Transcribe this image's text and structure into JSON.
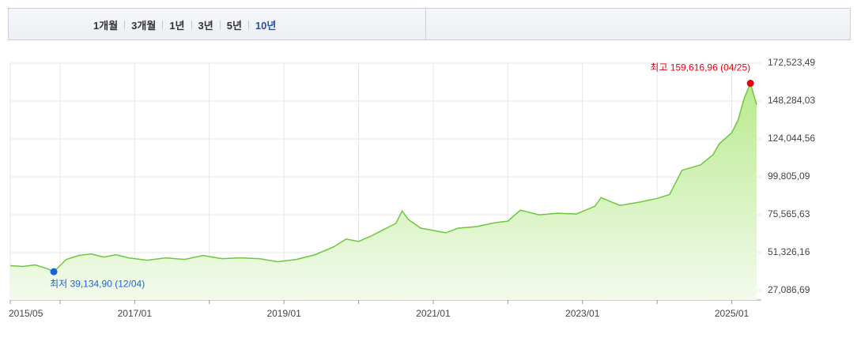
{
  "tabs": {
    "items": [
      "1개월",
      "3개월",
      "1년",
      "3년",
      "5년",
      "10년"
    ],
    "active": 5
  },
  "chart_data": {
    "type": "area-line",
    "x": [
      "2015/05",
      "2015/07",
      "2015/09",
      "2015/11",
      "2015/12",
      "2016/02",
      "2016/04",
      "2016/06",
      "2016/08",
      "2016/10",
      "2016/12",
      "2017/03",
      "2017/06",
      "2017/09",
      "2017/12",
      "2018/03",
      "2018/06",
      "2018/09",
      "2018/12",
      "2019/03",
      "2019/06",
      "2019/09",
      "2019/11",
      "2020/01",
      "2020/03",
      "2020/05",
      "2020/07",
      "2020/08",
      "2020/09",
      "2020/11",
      "2021/01",
      "2021/03",
      "2021/05",
      "2021/08",
      "2021/11",
      "2022/01",
      "2022/03",
      "2022/06",
      "2022/09",
      "2022/12",
      "2023/03",
      "2023/04",
      "2023/07",
      "2023/10",
      "2024/01",
      "2024/03",
      "2024/05",
      "2024/08",
      "2024/10",
      "2024/11",
      "2025/01",
      "2025/02",
      "2025/03",
      "2025/04",
      "2025/05"
    ],
    "values": [
      43000,
      42500,
      43500,
      41000,
      39135,
      47000,
      49500,
      50500,
      48500,
      50000,
      48000,
      46500,
      48000,
      47000,
      49500,
      47500,
      48000,
      47500,
      45500,
      47000,
      50000,
      55000,
      60000,
      58500,
      62000,
      66000,
      70000,
      78000,
      72500,
      67000,
      65500,
      64000,
      67000,
      68000,
      70500,
      71500,
      78500,
      75500,
      76500,
      76000,
      81000,
      86500,
      81500,
      83500,
      86000,
      88500,
      104000,
      107500,
      114000,
      121000,
      128000,
      136000,
      150000,
      159617,
      146000
    ],
    "color": "#6cc83a",
    "xlim": [
      "2015/05",
      "2025/05"
    ],
    "xticks": [
      "2015/05",
      "2017/01",
      "2019/01",
      "2021/01",
      "2023/01",
      "2025/01"
    ],
    "minor_xticks": [
      "2016/01",
      "2018/01",
      "2020/01",
      "2022/01",
      "2024/01"
    ],
    "ylim": [
      21027,
      172523.49
    ],
    "yticks": [
      {
        "value": 27086.69,
        "label": "27,086,69"
      },
      {
        "value": 51326.16,
        "label": "51,326,16"
      },
      {
        "value": 75565.63,
        "label": "75,565,63"
      },
      {
        "value": 99805.09,
        "label": "99,805,09"
      },
      {
        "value": 124044.56,
        "label": "124,044,56"
      },
      {
        "value": 148284.03,
        "label": "148,284,03"
      },
      {
        "value": 172523.49,
        "label": "172,523,49"
      }
    ],
    "grid": true,
    "annotations": [
      {
        "label": "최저 39,134,90 (12/04)",
        "x": "2015/12",
        "value": 39134.9,
        "color": "#1a63d6"
      },
      {
        "label": "최고 159,616,96 (04/25)",
        "x": "2025/04",
        "value": 159616.96,
        "color": "#e60012"
      }
    ]
  }
}
